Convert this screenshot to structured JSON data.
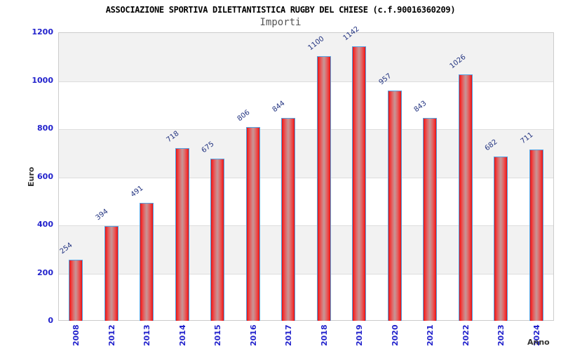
{
  "chart": {
    "title": "ASSOCIAZIONE SPORTIVA DILETTANTISTICA RUGBY DEL CHIESE (c.f.90016360209)",
    "subtitle": "Importi",
    "ylabel": "Euro",
    "xlabel": "Anno"
  },
  "chart_data": {
    "type": "bar",
    "title": "ASSOCIAZIONE SPORTIVA DILETTANTISTICA RUGBY DEL CHIESE (c.f.90016360209)",
    "subtitle": "Importi",
    "xlabel": "Anno",
    "ylabel": "Euro",
    "categories": [
      "2008",
      "2012",
      "2013",
      "2014",
      "2015",
      "2016",
      "2017",
      "2018",
      "2019",
      "2020",
      "2021",
      "2022",
      "2023",
      "2024"
    ],
    "values": [
      254,
      394,
      491,
      718,
      675,
      806,
      844,
      1100,
      1142,
      957,
      843,
      1026,
      682,
      711
    ],
    "ylim": [
      0,
      1200
    ],
    "yticks": [
      0,
      200,
      400,
      600,
      800,
      1000,
      1200
    ],
    "grid": "alternating-horizontal-bands",
    "legend": "none",
    "colors": {
      "bar_fill_edge": "#d91414",
      "bar_fill_center": "#c79697",
      "bar_border": "#55a2e2",
      "tick_label": "#2222cc",
      "value_label": "#223380",
      "band_gray": "#f2f2f2",
      "gridline": "#dddddd",
      "plot_border": "#cccccc",
      "title": "#000000",
      "subtitle": "#555555",
      "axis_label": "#333333"
    }
  }
}
